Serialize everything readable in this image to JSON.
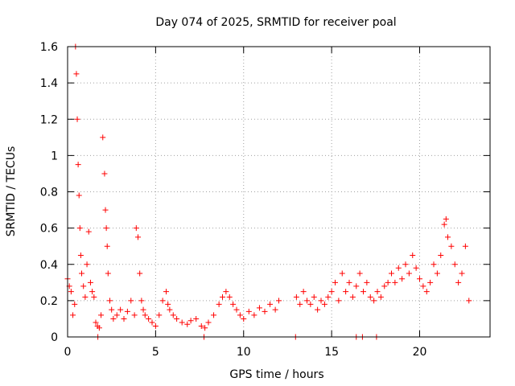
{
  "chart_data": {
    "type": "scatter",
    "title": "Day 074 of 2025, SRMTID for receiver poal",
    "xlabel": "GPS time / hours",
    "ylabel": "SRMTID / TECUs",
    "xlim": [
      0,
      24
    ],
    "ylim": [
      0,
      1.6
    ],
    "xticks": [
      0,
      5,
      10,
      15,
      20
    ],
    "xtick_labels": [
      "0",
      "5",
      "10",
      "15",
      "20"
    ],
    "yticks": [
      0,
      0.2,
      0.4,
      0.6,
      0.8,
      1.0,
      1.2,
      1.4,
      1.6
    ],
    "ytick_labels": [
      "0",
      "0.2",
      "0.4",
      "0.6",
      "0.8",
      "1",
      "1.2",
      "1.4",
      "1.6"
    ],
    "grid": true,
    "marker": "+",
    "color": "#ff0000",
    "series": [
      {
        "name": "SRMTID",
        "x": [
          0.0,
          0.1,
          0.2,
          0.3,
          0.4,
          0.45,
          0.5,
          0.55,
          0.6,
          0.65,
          0.7,
          0.75,
          0.8,
          0.9,
          1.0,
          1.1,
          1.2,
          1.3,
          1.4,
          1.5,
          1.6,
          1.7,
          1.8,
          1.9,
          2.0,
          2.1,
          2.15,
          2.2,
          2.25,
          2.3,
          2.4,
          2.5,
          2.6,
          2.8,
          3.0,
          3.2,
          3.4,
          3.6,
          3.8,
          3.9,
          4.0,
          4.1,
          4.2,
          4.3,
          4.4,
          4.6,
          4.8,
          5.0,
          5.2,
          5.4,
          5.6,
          5.7,
          5.8,
          6.0,
          6.2,
          6.5,
          6.8,
          7.0,
          7.3,
          7.6,
          7.8,
          8.0,
          8.3,
          8.6,
          8.8,
          9.0,
          9.2,
          9.4,
          9.6,
          9.8,
          10.0,
          10.3,
          10.6,
          10.9,
          11.2,
          11.5,
          11.8,
          12.0,
          13.0,
          13.2,
          13.4,
          13.6,
          13.8,
          14.0,
          14.2,
          14.4,
          14.6,
          14.8,
          15.0,
          15.2,
          15.4,
          15.6,
          15.8,
          16.0,
          16.2,
          16.4,
          16.6,
          16.8,
          17.0,
          17.2,
          17.4,
          17.6,
          17.8,
          18.0,
          18.2,
          18.4,
          18.6,
          18.8,
          19.0,
          19.2,
          19.4,
          19.6,
          19.8,
          20.0,
          20.2,
          20.4,
          20.6,
          20.8,
          21.0,
          21.2,
          21.4,
          21.5,
          21.6,
          21.8,
          22.0,
          22.2,
          22.4,
          22.6,
          22.8,
          1.72,
          7.75,
          12.95,
          16.4,
          16.75,
          17.55
        ],
        "y": [
          0.32,
          0.28,
          0.25,
          0.12,
          0.18,
          1.6,
          1.45,
          1.2,
          0.95,
          0.78,
          0.6,
          0.45,
          0.35,
          0.28,
          0.22,
          0.4,
          0.58,
          0.3,
          0.25,
          0.22,
          0.08,
          0.06,
          0.05,
          0.12,
          1.1,
          0.9,
          0.7,
          0.6,
          0.5,
          0.35,
          0.2,
          0.15,
          0.1,
          0.12,
          0.15,
          0.1,
          0.14,
          0.2,
          0.12,
          0.6,
          0.55,
          0.35,
          0.2,
          0.15,
          0.12,
          0.1,
          0.08,
          0.06,
          0.12,
          0.2,
          0.25,
          0.18,
          0.15,
          0.12,
          0.1,
          0.08,
          0.07,
          0.09,
          0.1,
          0.06,
          0.05,
          0.08,
          0.12,
          0.18,
          0.22,
          0.25,
          0.22,
          0.18,
          0.15,
          0.12,
          0.1,
          0.14,
          0.12,
          0.16,
          0.14,
          0.18,
          0.15,
          0.2,
          0.22,
          0.18,
          0.25,
          0.2,
          0.18,
          0.22,
          0.15,
          0.2,
          0.18,
          0.22,
          0.25,
          0.3,
          0.2,
          0.35,
          0.25,
          0.3,
          0.22,
          0.28,
          0.35,
          0.25,
          0.3,
          0.22,
          0.2,
          0.25,
          0.22,
          0.28,
          0.3,
          0.35,
          0.3,
          0.38,
          0.32,
          0.4,
          0.35,
          0.45,
          0.38,
          0.32,
          0.28,
          0.25,
          0.3,
          0.4,
          0.35,
          0.45,
          0.62,
          0.65,
          0.55,
          0.5,
          0.4,
          0.3,
          0.35,
          0.5,
          0.2,
          0.0,
          0.0,
          0.0,
          0.0,
          0.0,
          0.0
        ]
      }
    ]
  }
}
